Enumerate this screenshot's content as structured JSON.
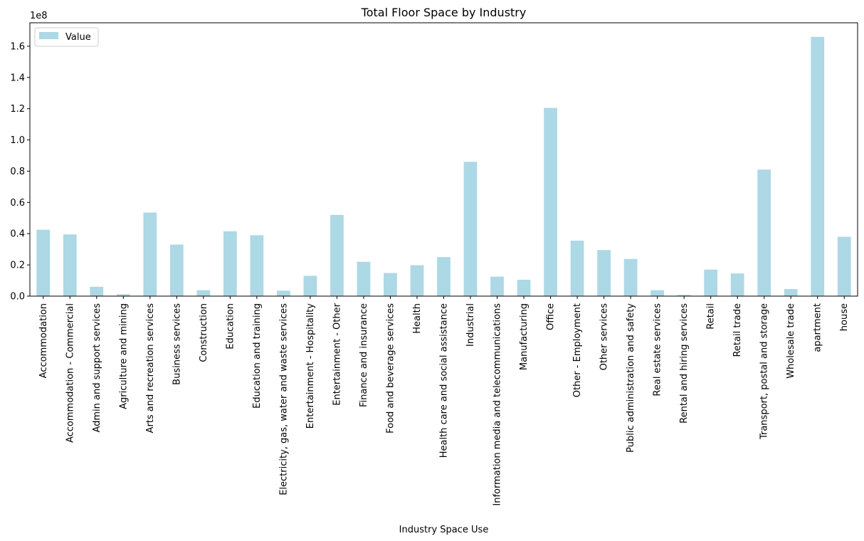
{
  "chart_data": {
    "type": "bar",
    "title": "Total Floor Space by Industry",
    "xlabel": "Industry Space Use",
    "ylabel": "",
    "y_scale_label": "1e8",
    "y_scale": 100000000,
    "ylim": [
      0,
      175000000
    ],
    "yticks": [
      0,
      20000000,
      40000000,
      60000000,
      80000000,
      100000000,
      120000000,
      140000000,
      160000000
    ],
    "ytick_labels": [
      "0.0",
      "0.2",
      "0.4",
      "0.6",
      "0.8",
      "1.0",
      "1.2",
      "1.4",
      "1.6"
    ],
    "grid": false,
    "legend_position": "top-left",
    "bar_color": "#add8e6",
    "categories": [
      "Accommodation",
      "Accommodation - Commercial",
      "Admin and support services",
      "Agriculture and mining",
      "Arts and recreation services",
      "Business services",
      "Construction",
      "Education",
      "Education and training",
      "Electricity, gas, water and waste services",
      "Entertainment - Hospitality",
      "Entertainment - Other",
      "Finance and insurance",
      "Food and beverage services",
      "Health",
      "Health care and social assistance",
      "Industrial",
      "Information media and telecommunications",
      "Manufacturing",
      "Office",
      "Other - Employment",
      "Other services",
      "Public administration and safety",
      "Real estate services",
      "Rental and hiring services",
      "Retail",
      "Retail trade",
      "Transport, postal and storage",
      "Wholesale trade",
      "apartment",
      "house"
    ],
    "series": [
      {
        "name": "Value",
        "values": [
          42500000,
          39500000,
          6000000,
          1200000,
          53500000,
          33000000,
          3800000,
          41500000,
          39000000,
          3500000,
          13000000,
          52000000,
          22000000,
          14800000,
          19800000,
          25000000,
          86000000,
          12500000,
          10500000,
          120500000,
          35500000,
          29500000,
          23800000,
          3800000,
          800000,
          17000000,
          14500000,
          81000000,
          4500000,
          166000000,
          38000000
        ]
      }
    ]
  }
}
